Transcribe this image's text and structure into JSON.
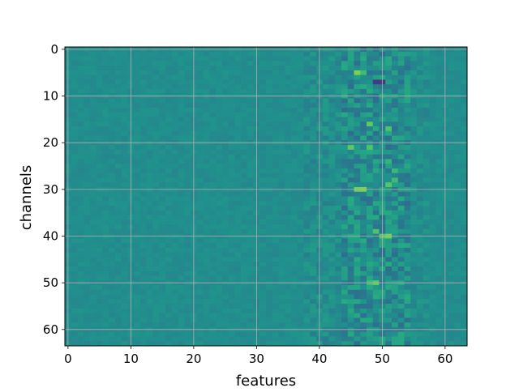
{
  "chart_data": {
    "type": "heatmap",
    "title": "",
    "xlabel": "features",
    "ylabel": "channels",
    "rows": 64,
    "cols": 64,
    "xlim": [
      -0.5,
      63.5
    ],
    "ylim": [
      63.5,
      -0.5
    ],
    "y_inverted": true,
    "x_ticks": [
      "0",
      "10",
      "20",
      "30",
      "40",
      "50",
      "60"
    ],
    "y_ticks": [
      "0",
      "10",
      "20",
      "30",
      "40",
      "50",
      "60"
    ],
    "grid": true,
    "colormap": "viridis",
    "value_range": [
      -1,
      1
    ],
    "background_value": 0,
    "colorbar": false,
    "note_values": "values normalized to [-1, 1]; cells not listed are ~0 with small variations",
    "highlights": [
      {
        "row": 5,
        "col": 46,
        "value": 0.95
      },
      {
        "row": 5,
        "col": 47,
        "value": 0.6
      },
      {
        "row": 7,
        "col": 49,
        "value": -0.95
      },
      {
        "row": 7,
        "col": 50,
        "value": -0.95
      },
      {
        "row": 16,
        "col": 48,
        "value": 0.8
      },
      {
        "row": 17,
        "col": 51,
        "value": 0.7
      },
      {
        "row": 21,
        "col": 45,
        "value": 0.8
      },
      {
        "row": 21,
        "col": 48,
        "value": 0.7
      },
      {
        "row": 24,
        "col": 51,
        "value": 0.5
      },
      {
        "row": 26,
        "col": 52,
        "value": 0.55
      },
      {
        "row": 28,
        "col": 52,
        "value": 0.6
      },
      {
        "row": 29,
        "col": 51,
        "value": 0.75
      },
      {
        "row": 30,
        "col": 46,
        "value": 0.9
      },
      {
        "row": 30,
        "col": 47,
        "value": 0.95
      },
      {
        "row": 39,
        "col": 49,
        "value": 0.7
      },
      {
        "row": 40,
        "col": 50,
        "value": 0.75
      },
      {
        "row": 40,
        "col": 51,
        "value": 0.9
      },
      {
        "row": 50,
        "col": 48,
        "value": 0.6
      },
      {
        "row": 50,
        "col": 49,
        "value": 0.8
      }
    ]
  }
}
